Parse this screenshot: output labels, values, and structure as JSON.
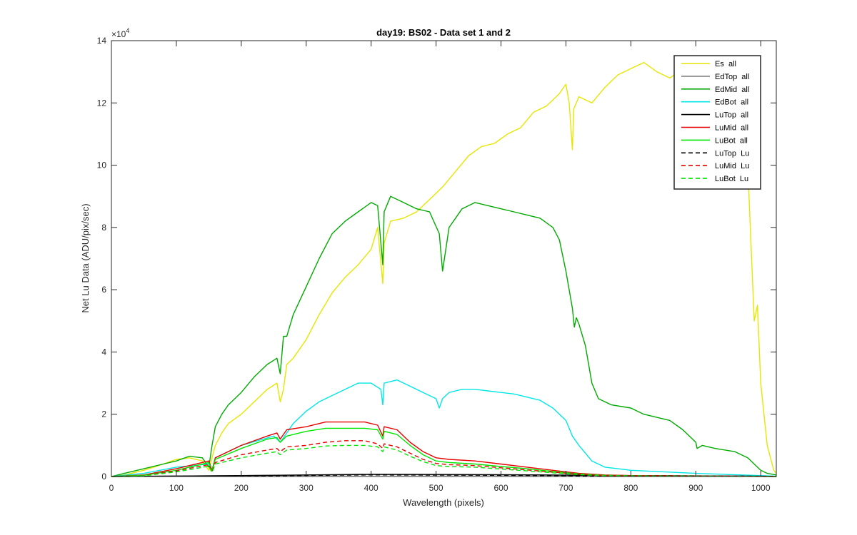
{
  "chart_data": {
    "type": "line",
    "title": "day19: BS02 - Data set 1 and 2",
    "xlabel": "Wavelength (pixels)",
    "ylabel": "Net Lu Data (ADU/pix/sec)",
    "y_exponent_label": "×10",
    "y_exponent_power": "4",
    "xlim": [
      0,
      1024
    ],
    "ylim": [
      0,
      140000
    ],
    "xticks": [
      0,
      100,
      200,
      300,
      400,
      500,
      600,
      700,
      800,
      900,
      1000
    ],
    "yticks": [
      0,
      20000,
      40000,
      60000,
      80000,
      100000,
      120000,
      140000
    ],
    "ytick_labels": [
      "0",
      "2",
      "4",
      "6",
      "8",
      "10",
      "12",
      "14"
    ],
    "grid": false,
    "legend_position": "top-right",
    "series": [
      {
        "name": "Es  all",
        "color": "#e6e600",
        "dash": "solid",
        "x": [
          0,
          20,
          50,
          80,
          100,
          120,
          140,
          150,
          155,
          160,
          170,
          180,
          200,
          220,
          240,
          255,
          260,
          265,
          270,
          280,
          300,
          320,
          340,
          360,
          380,
          400,
          410,
          418,
          420,
          430,
          450,
          470,
          490,
          510,
          530,
          550,
          570,
          590,
          610,
          630,
          650,
          670,
          690,
          700,
          705,
          710,
          712,
          720,
          740,
          760,
          780,
          800,
          820,
          840,
          860,
          880,
          900,
          920,
          940,
          960,
          970,
          980,
          985,
          990,
          995,
          1000,
          1010,
          1020,
          1024
        ],
        "y": [
          0,
          500,
          2000,
          4000,
          5500,
          6000,
          5000,
          2000,
          6000,
          10000,
          14000,
          17000,
          20000,
          24000,
          28000,
          30000,
          24000,
          28000,
          36000,
          38000,
          44000,
          52000,
          59000,
          64000,
          68000,
          73000,
          80000,
          62000,
          75000,
          82000,
          83000,
          85000,
          89000,
          93000,
          98000,
          103000,
          106000,
          107000,
          110000,
          112000,
          117000,
          119000,
          123000,
          126000,
          120000,
          105000,
          118000,
          122000,
          120000,
          125000,
          129000,
          131000,
          133000,
          130000,
          128000,
          131000,
          130000,
          129000,
          128000,
          130000,
          125000,
          100000,
          75000,
          50000,
          55000,
          30000,
          10000,
          2000,
          1000
        ]
      },
      {
        "name": "EdTop  all",
        "color": "#808080",
        "dash": "solid",
        "x": [
          0,
          200,
          400,
          600,
          800,
          1000,
          1024
        ],
        "y": [
          0,
          300,
          600,
          500,
          300,
          100,
          50
        ]
      },
      {
        "name": "EdMid  all",
        "color": "#00aa00",
        "dash": "solid",
        "x": [
          0,
          20,
          50,
          80,
          100,
          120,
          140,
          150,
          155,
          160,
          170,
          180,
          200,
          220,
          240,
          255,
          260,
          265,
          270,
          280,
          300,
          320,
          340,
          360,
          380,
          400,
          410,
          418,
          420,
          430,
          450,
          470,
          490,
          505,
          510,
          520,
          540,
          560,
          580,
          600,
          620,
          640,
          660,
          680,
          690,
          700,
          710,
          713,
          716,
          720,
          730,
          740,
          750,
          760,
          770,
          800,
          820,
          840,
          860,
          880,
          890,
          900,
          902,
          910,
          930,
          960,
          980,
          1000,
          1010,
          1024
        ],
        "y": [
          0,
          1000,
          2500,
          4000,
          5000,
          6500,
          6000,
          3000,
          10000,
          16000,
          20000,
          23000,
          27000,
          32000,
          36000,
          38000,
          33000,
          45000,
          45000,
          52000,
          61000,
          70000,
          78000,
          82000,
          85000,
          88000,
          87000,
          68000,
          85000,
          90000,
          88000,
          86000,
          85000,
          78000,
          66000,
          80000,
          86000,
          88000,
          87000,
          86000,
          85000,
          84000,
          83000,
          80000,
          76000,
          66000,
          54000,
          48000,
          51000,
          49000,
          42000,
          30000,
          25000,
          24000,
          23000,
          22000,
          20000,
          19000,
          18000,
          15000,
          13000,
          11000,
          9000,
          10000,
          9000,
          8000,
          6000,
          2000,
          1000,
          500
        ]
      },
      {
        "name": "EdBot  all",
        "color": "#00e6e6",
        "dash": "solid",
        "x": [
          0,
          50,
          100,
          150,
          155,
          160,
          200,
          250,
          260,
          280,
          300,
          320,
          340,
          360,
          380,
          400,
          415,
          418,
          420,
          440,
          460,
          480,
          500,
          505,
          510,
          520,
          540,
          560,
          580,
          600,
          620,
          640,
          660,
          680,
          700,
          710,
          720,
          740,
          760,
          780,
          800,
          900,
          1000,
          1024
        ],
        "y": [
          0,
          1000,
          3000,
          4000,
          2000,
          6000,
          10000,
          13000,
          11000,
          17000,
          21000,
          24000,
          26000,
          28000,
          30000,
          30000,
          28000,
          23000,
          30000,
          31000,
          29000,
          27000,
          25000,
          22000,
          25000,
          27000,
          28000,
          28000,
          27500,
          27000,
          26500,
          25500,
          24500,
          22000,
          18000,
          13000,
          10000,
          5000,
          3000,
          2500,
          2000,
          1000,
          300,
          100
        ]
      },
      {
        "name": "LuTop  all",
        "color": "#000000",
        "dash": "solid",
        "x": [
          0,
          200,
          400,
          600,
          800,
          1000,
          1024
        ],
        "y": [
          0,
          300,
          700,
          600,
          300,
          100,
          50
        ]
      },
      {
        "name": "LuMid  all",
        "color": "#e60000",
        "dash": "solid",
        "x": [
          0,
          50,
          100,
          150,
          155,
          160,
          200,
          240,
          255,
          260,
          270,
          300,
          330,
          360,
          390,
          410,
          418,
          420,
          440,
          460,
          480,
          500,
          520,
          560,
          600,
          640,
          680,
          720,
          760,
          800,
          900,
          1000,
          1024
        ],
        "y": [
          0,
          500,
          2500,
          5000,
          2000,
          6000,
          10000,
          13000,
          14000,
          12000,
          15000,
          16000,
          17500,
          17500,
          17500,
          16500,
          13000,
          16000,
          15000,
          11000,
          8000,
          6000,
          5500,
          5000,
          4000,
          3000,
          2000,
          1000,
          500,
          300,
          150,
          50,
          0
        ]
      },
      {
        "name": "LuBot  all",
        "color": "#00e600",
        "dash": "solid",
        "x": [
          0,
          50,
          100,
          150,
          155,
          160,
          200,
          240,
          255,
          260,
          270,
          300,
          330,
          360,
          390,
          410,
          418,
          420,
          440,
          460,
          480,
          500,
          520,
          560,
          600,
          640,
          680,
          720,
          760,
          800,
          900,
          1000,
          1024
        ],
        "y": [
          0,
          400,
          2000,
          4500,
          1800,
          5500,
          9000,
          12000,
          12500,
          11000,
          13000,
          14500,
          15500,
          15500,
          15500,
          15000,
          12000,
          14500,
          13500,
          10000,
          7000,
          5000,
          4500,
          4000,
          3200,
          2500,
          1600,
          800,
          400,
          250,
          120,
          40,
          0
        ]
      },
      {
        "name": "LuTop  Lu",
        "color": "#000000",
        "dash": "dashed",
        "x": [
          0,
          200,
          400,
          600,
          800,
          1000,
          1024
        ],
        "y": [
          0,
          200,
          500,
          400,
          200,
          80,
          30
        ]
      },
      {
        "name": "LuMid  Lu",
        "color": "#e60000",
        "dash": "dashed",
        "x": [
          0,
          50,
          100,
          150,
          155,
          160,
          200,
          240,
          255,
          260,
          270,
          300,
          330,
          360,
          390,
          410,
          418,
          420,
          440,
          460,
          480,
          500,
          520,
          560,
          600,
          640,
          680,
          720,
          760,
          800,
          900,
          1000,
          1024
        ],
        "y": [
          0,
          300,
          1800,
          3800,
          1500,
          4500,
          7000,
          8500,
          9000,
          8000,
          9500,
          10000,
          11000,
          11500,
          11500,
          10500,
          9000,
          10500,
          9500,
          7500,
          5500,
          4200,
          3800,
          3500,
          2800,
          2100,
          1400,
          700,
          300,
          200,
          100,
          30,
          0
        ]
      },
      {
        "name": "LuBot  Lu",
        "color": "#00e600",
        "dash": "dashed",
        "x": [
          0,
          50,
          100,
          150,
          155,
          160,
          200,
          240,
          255,
          260,
          270,
          300,
          330,
          360,
          390,
          410,
          418,
          420,
          440,
          460,
          480,
          500,
          520,
          560,
          600,
          640,
          680,
          720,
          760,
          800,
          900,
          1000,
          1024
        ],
        "y": [
          0,
          250,
          1500,
          3300,
          1300,
          4000,
          6000,
          7500,
          8000,
          7000,
          8500,
          9000,
          9800,
          10000,
          10000,
          9500,
          8000,
          9500,
          8500,
          6500,
          4800,
          3500,
          3200,
          3000,
          2400,
          1800,
          1200,
          600,
          250,
          150,
          80,
          20,
          0
        ]
      }
    ]
  }
}
